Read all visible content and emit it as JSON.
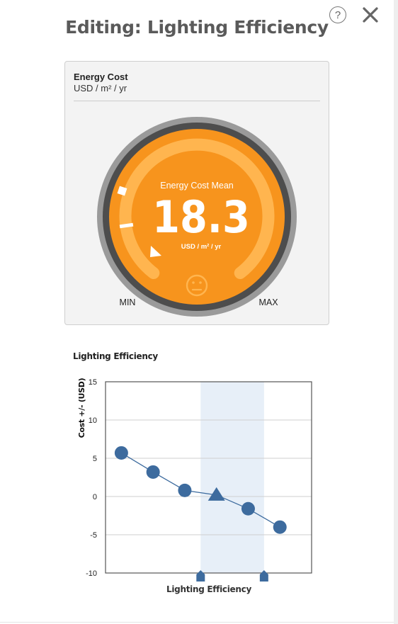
{
  "header": {
    "title": "Editing: Lighting Efficiency",
    "help_glyph": "?",
    "close_glyph": "✕"
  },
  "gauge": {
    "metric_name": "Energy Cost",
    "metric_unit": "USD / m² / yr",
    "center_label": "Energy Cost Mean",
    "value": "18.3",
    "value_unit": "USD / m² / yr",
    "min_label": "MIN",
    "max_label": "MAX",
    "face_icon": "neutral-face-icon",
    "colors": {
      "face": "#f7941d",
      "ring": "#555555",
      "outer": "#9a9a9a",
      "track": "#ffb54f"
    }
  },
  "chart_section": {
    "label": "Lighting Efficiency"
  },
  "chart_data": {
    "type": "line",
    "xlabel": "Lighting Efficiency",
    "ylabel": "Cost +/- (USD)",
    "ylim": [
      -10,
      15
    ],
    "yticks": [
      "15",
      "10",
      "5",
      "0",
      "-5",
      "-10"
    ],
    "grid": true,
    "series": [
      {
        "x": [
          1,
          2,
          3,
          4,
          5,
          6
        ],
        "values": [
          5.7,
          3.2,
          0.8,
          0.2,
          -1.6,
          -4.0
        ],
        "markers": [
          "circle",
          "circle",
          "circle",
          "triangle",
          "circle",
          "circle"
        ]
      }
    ],
    "highlight_range": [
      3.5,
      5.5
    ],
    "colors": {
      "line": "#3d6b9e",
      "marker": "#3d6b9e",
      "highlight": "#e7eff8"
    }
  }
}
